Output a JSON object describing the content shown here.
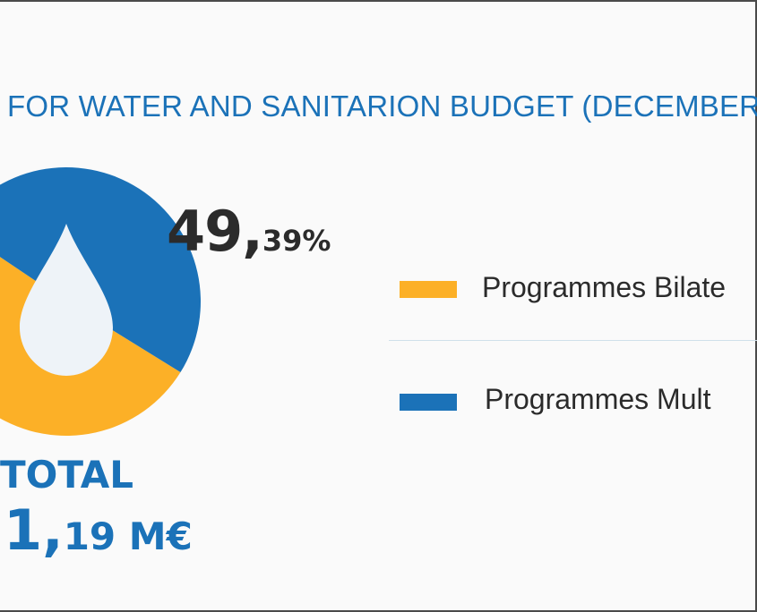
{
  "chart_data": {
    "type": "pie",
    "title": "FOR WATER AND SANITARION BUDGET (DECEMBER",
    "slices": [
      {
        "label": "Programmes Bilate",
        "value": 50.61,
        "color": "#fcb027"
      },
      {
        "label": "Programmes Mult",
        "value": 49.39,
        "color": "#1b72b8"
      }
    ],
    "highlight_label": {
      "big": "49,",
      "small": "39%"
    },
    "total": {
      "label": "TOTAL",
      "value_big": "1,",
      "value_small": "19 M€"
    },
    "legend_placement": "right"
  },
  "colors": {
    "title": "#1b72b8",
    "bilateral": "#fcb027",
    "multilateral": "#1b72b8",
    "drop": "#eef3f8"
  },
  "icons": {
    "center": "water-drop-icon"
  }
}
